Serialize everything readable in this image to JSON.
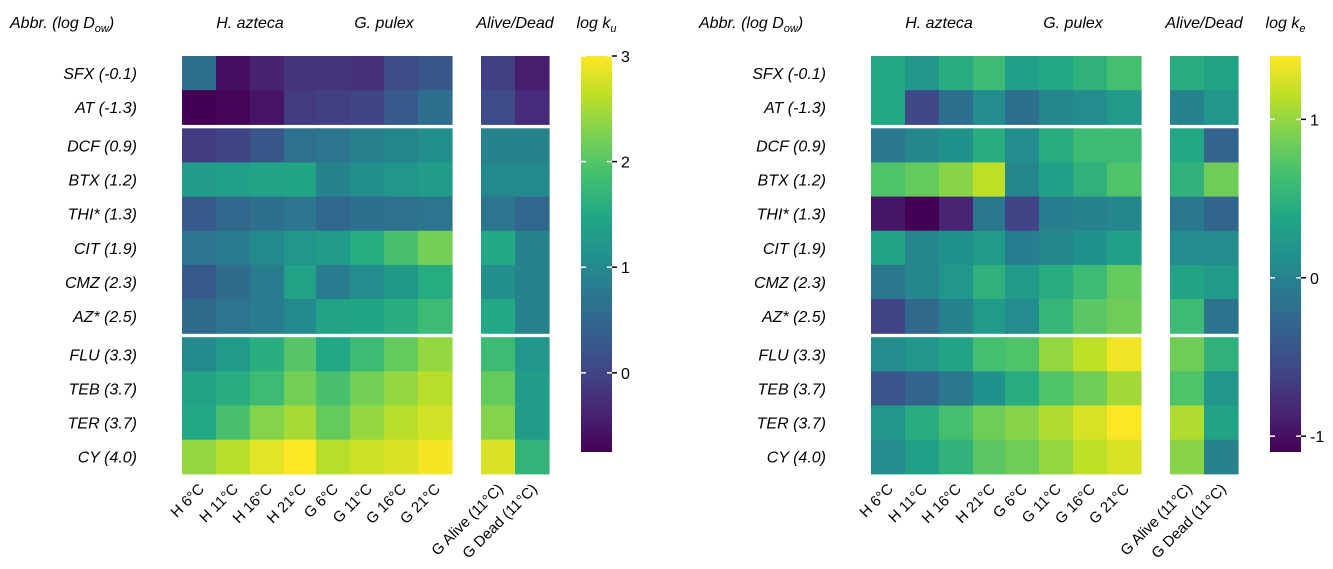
{
  "chart_data": [
    {
      "type": "heatmap",
      "header": {
        "abbr": "Abbr. (log D",
        "abbr_sub": "ow",
        "abbr_close": ")",
        "group_titles": [
          "H. azteca",
          "G. pulex",
          "Alive/Dead"
        ]
      },
      "colorbar": {
        "label": "log k",
        "label_sub": "u",
        "ticks": [
          0,
          1,
          2,
          3
        ],
        "vmin": -0.75,
        "vmax": 3.0
      },
      "rows": [
        "SFX (-0.1)",
        "AT (-1.3)",
        "DCF (0.9)",
        "BTX (1.2)",
        "THI* (1.3)",
        "CIT (1.9)",
        "CMZ (2.3)",
        "AZ* (2.5)",
        "FLU (3.3)",
        "TEB (3.7)",
        "TER (3.7)",
        "CY (4.0)"
      ],
      "row_group_breaks_after": [
        1,
        7
      ],
      "columns": [
        "H 6°C",
        "H 11°C",
        "H 16°C",
        "H 21°C",
        "G 6°C",
        "G 11°C",
        "G 16°C",
        "G 21°C",
        "G Alive (11°C)",
        "G Dead (11°C)"
      ],
      "column_groups": [
        [
          0,
          1,
          2,
          3
        ],
        [
          4,
          5,
          6,
          7
        ],
        [
          8,
          9
        ]
      ],
      "values": [
        [
          0.6,
          -0.6,
          -0.4,
          -0.2,
          -0.2,
          -0.25,
          0.1,
          0.25,
          -0.05,
          -0.45
        ],
        [
          -0.75,
          -0.7,
          -0.55,
          -0.1,
          -0.05,
          0.0,
          0.3,
          0.6,
          0.1,
          -0.3
        ],
        [
          -0.1,
          0.0,
          0.25,
          0.65,
          0.7,
          0.85,
          0.95,
          1.1,
          0.9,
          0.9
        ],
        [
          1.3,
          1.35,
          1.4,
          1.45,
          0.9,
          1.1,
          1.2,
          1.3,
          1.0,
          1.0
        ],
        [
          0.3,
          0.5,
          0.6,
          0.7,
          0.5,
          0.6,
          0.65,
          0.7,
          0.7,
          0.5
        ],
        [
          0.7,
          0.8,
          1.0,
          1.2,
          1.3,
          1.55,
          1.9,
          2.2,
          1.5,
          0.9
        ],
        [
          0.3,
          0.55,
          0.8,
          1.4,
          0.8,
          1.05,
          1.25,
          1.55,
          1.1,
          0.9
        ],
        [
          0.55,
          0.7,
          0.8,
          1.0,
          1.4,
          1.45,
          1.6,
          1.8,
          1.5,
          0.9
        ],
        [
          1.0,
          1.3,
          1.6,
          2.0,
          1.5,
          1.8,
          2.1,
          2.4,
          1.8,
          1.2
        ],
        [
          1.4,
          1.6,
          1.8,
          2.2,
          1.9,
          2.2,
          2.4,
          2.6,
          2.1,
          1.3
        ],
        [
          1.5,
          1.9,
          2.3,
          2.5,
          2.1,
          2.4,
          2.6,
          2.75,
          2.3,
          1.3
        ],
        [
          2.4,
          2.6,
          2.85,
          3.0,
          2.6,
          2.7,
          2.8,
          2.95,
          2.8,
          1.7
        ]
      ]
    },
    {
      "type": "heatmap",
      "header": {
        "abbr": "Abbr. (log D",
        "abbr_sub": "ow",
        "abbr_close": ")",
        "group_titles": [
          "H. azteca",
          "G. pulex",
          "Alive/Dead"
        ]
      },
      "colorbar": {
        "label": "log k",
        "label_sub": "e",
        "ticks": [
          -1,
          0,
          1
        ],
        "vmin": -1.1,
        "vmax": 1.4
      },
      "rows": [
        "SFX (-0.1)",
        "AT (-1.3)",
        "DCF (0.9)",
        "BTX (1.2)",
        "THI* (1.3)",
        "CIT (1.9)",
        "CMZ (2.3)",
        "AZ* (2.5)",
        "FLU (3.3)",
        "TEB (3.7)",
        "TER (3.7)",
        "CY (4.0)"
      ],
      "row_group_breaks_after": [
        1,
        7
      ],
      "columns": [
        "H 6°C",
        "H 11°C",
        "H 16°C",
        "H 21°C",
        "G 6°C",
        "G 11°C",
        "G 16°C",
        "G 21°C",
        "G Alive (11°C)",
        "G Dead (11°C)"
      ],
      "column_groups": [
        [
          0,
          1,
          2,
          3
        ],
        [
          4,
          5,
          6,
          7
        ],
        [
          8,
          9
        ]
      ],
      "values": [
        [
          0.4,
          0.2,
          0.45,
          0.6,
          0.3,
          0.4,
          0.5,
          0.65,
          0.45,
          0.35
        ],
        [
          0.4,
          -0.55,
          -0.2,
          0.1,
          -0.2,
          0.05,
          0.1,
          0.25,
          0.0,
          0.2
        ],
        [
          -0.1,
          0.05,
          0.15,
          0.45,
          0.1,
          0.45,
          0.6,
          0.6,
          0.4,
          -0.3
        ],
        [
          0.7,
          0.8,
          0.95,
          1.15,
          0.05,
          0.3,
          0.5,
          0.7,
          0.5,
          0.85
        ],
        [
          -0.95,
          -1.1,
          -0.85,
          -0.1,
          -0.6,
          -0.05,
          0.0,
          0.05,
          -0.1,
          -0.3
        ],
        [
          0.35,
          0.05,
          0.15,
          0.25,
          -0.05,
          0.05,
          0.15,
          0.3,
          0.1,
          0.1
        ],
        [
          -0.1,
          0.05,
          0.2,
          0.5,
          0.25,
          0.45,
          0.6,
          0.8,
          0.35,
          0.25
        ],
        [
          -0.6,
          -0.25,
          0.0,
          0.25,
          0.1,
          0.55,
          0.75,
          0.85,
          0.6,
          -0.15
        ],
        [
          0.1,
          0.2,
          0.35,
          0.65,
          0.7,
          1.0,
          1.15,
          1.35,
          0.85,
          0.5
        ],
        [
          -0.45,
          -0.3,
          -0.1,
          0.15,
          0.45,
          0.7,
          0.85,
          1.05,
          0.7,
          0.2
        ],
        [
          0.2,
          0.45,
          0.65,
          0.85,
          0.95,
          1.1,
          1.25,
          1.4,
          1.1,
          0.35
        ],
        [
          0.1,
          0.3,
          0.5,
          0.75,
          0.85,
          1.0,
          1.15,
          1.25,
          0.95,
          0.0
        ]
      ]
    }
  ]
}
